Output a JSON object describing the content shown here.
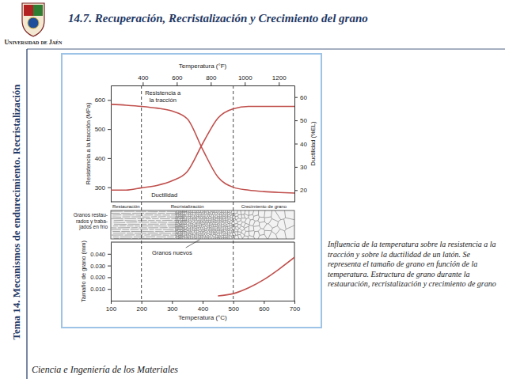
{
  "slide": {
    "logo_text": "Universidad de Jaén",
    "title": "14.7. Recuperación, Recristalización y Crecimiento del grano",
    "side_title": "Tema 14. Mecanismos de endurecimiento. Recristalización",
    "footer": "Ciencia e Ingeniería de los Materiales",
    "caption": "Influencia de la temperatura sobre la resistencia a la tracción y sobre la ductilidad de un latón. Se representa el tamaño de grano en función de la temperatura. Estructura de grano durante la restauración, recristalización y crecimiento de grano"
  },
  "grain_structure": {
    "cold_label": [
      "Granos restau-",
      "rados y traba-",
      "jados en frío"
    ],
    "new_label": "Granos nuevos"
  },
  "chart_data": [
    {
      "type": "line",
      "x": [
        100,
        150,
        200,
        250,
        300,
        350,
        400,
        450,
        500,
        550,
        600,
        650,
        700
      ],
      "xlim": [
        100,
        700
      ],
      "x2lim": [
        212,
        1292
      ],
      "x2ticks": [
        400,
        600,
        800,
        1000,
        1200
      ],
      "x2_label": "Temperatura (°F)",
      "ylabel": "Resistencia a la tracción (MPa)",
      "ylim": [
        250,
        650
      ],
      "yticks": [
        300,
        400,
        500,
        600
      ],
      "y2label": "Ductilidad (%EL)",
      "y2lim": [
        15,
        65
      ],
      "y2ticks": [
        20,
        30,
        40,
        50,
        60
      ],
      "regions": [
        {
          "label": "Restauración",
          "from": 100,
          "to": 200
        },
        {
          "label": "Recristalización",
          "from": 200,
          "to": 500
        },
        {
          "label": "Crecimiento de grano",
          "from": 500,
          "to": 700
        }
      ],
      "series": [
        {
          "name": "Resistencia a la tracción",
          "color": "#c0504d",
          "values": [
            585,
            582,
            578,
            572,
            562,
            535,
            430,
            335,
            300,
            290,
            285,
            282,
            280
          ]
        },
        {
          "name": "Ductilidad",
          "color": "#c0504d",
          "axis": "y2",
          "values": [
            20,
            20,
            21,
            22,
            24,
            28,
            40,
            51,
            55,
            56,
            56,
            56,
            56
          ]
        }
      ]
    },
    {
      "type": "line",
      "x": [
        100,
        150,
        200,
        250,
        300,
        350,
        400,
        450,
        500,
        550,
        600,
        650,
        700
      ],
      "xlim": [
        100,
        700
      ],
      "xticks": [
        100,
        200,
        300,
        400,
        500,
        600,
        700
      ],
      "xlabel": "Temperatura (°C)",
      "ylabel": "Tamaño de grano (mm)",
      "ylim": [
        0,
        0.05
      ],
      "yticks": [
        {
          "value": 0.01,
          "label": "0.010"
        },
        {
          "value": 0.02,
          "label": "0.020"
        },
        {
          "value": 0.03,
          "label": "0.030"
        },
        {
          "value": 0.04,
          "label": "0.040"
        }
      ],
      "series": [
        {
          "color": "#c0504d",
          "values": [
            null,
            null,
            null,
            null,
            null,
            null,
            null,
            0.004,
            0.006,
            0.011,
            0.018,
            0.027,
            0.037
          ]
        }
      ]
    }
  ]
}
